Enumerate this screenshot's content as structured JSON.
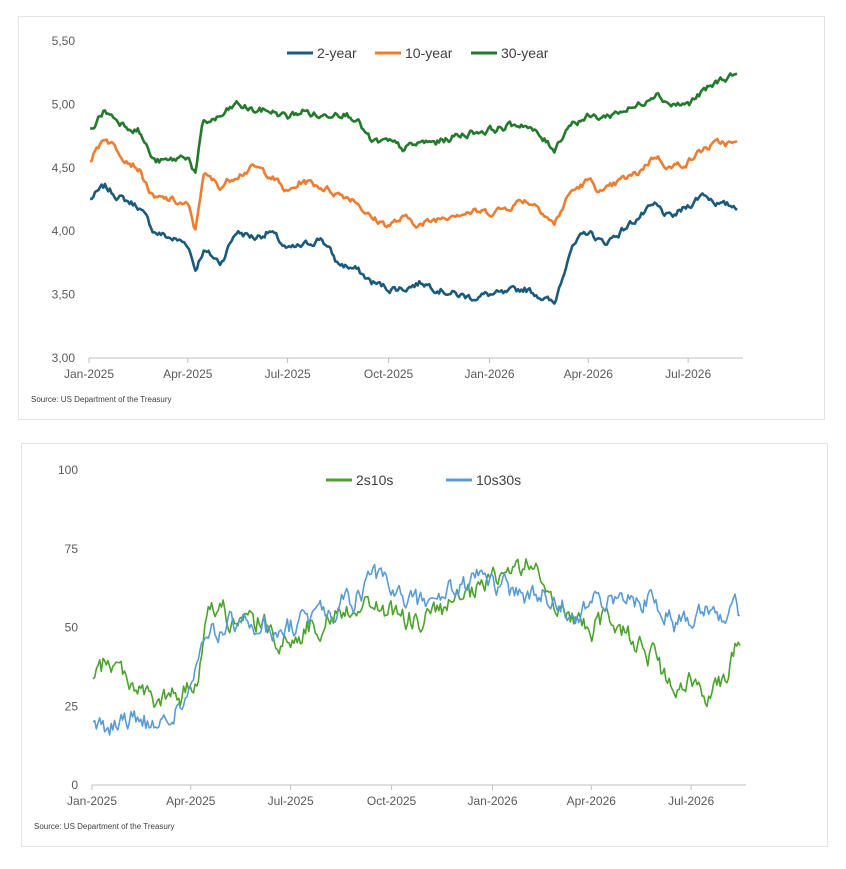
{
  "chart_data": [
    {
      "type": "line",
      "yticks": [
        "3,00",
        "3,50",
        "4,00",
        "4,50",
        "5,00",
        "5,50"
      ],
      "ylim": [
        3.0,
        5.5
      ],
      "xticks": [
        "Jan-2025",
        "Apr-2025",
        "Jul-2025",
        "Oct-2025",
        "Jan-2026",
        "Apr-2026",
        "Jul-2026"
      ],
      "legend_position": "top-center",
      "grid": false,
      "source": "Source: US Department of the Treasury",
      "x": [
        "2025-01-02",
        "2025-01-15",
        "2025-02-01",
        "2025-02-15",
        "2025-03-01",
        "2025-03-15",
        "2025-04-01",
        "2025-04-08",
        "2025-04-15",
        "2025-05-01",
        "2025-05-15",
        "2025-06-01",
        "2025-06-15",
        "2025-07-01",
        "2025-07-15",
        "2025-08-01",
        "2025-08-15",
        "2025-09-01",
        "2025-09-15",
        "2025-10-01",
        "2025-10-15",
        "2025-11-01",
        "2025-11-15",
        "2025-12-01",
        "2025-12-15",
        "2026-01-01",
        "2026-01-15",
        "2026-02-01",
        "2026-02-15",
        "2026-03-01",
        "2026-03-15",
        "2026-04-01",
        "2026-04-15",
        "2026-05-01",
        "2026-05-15",
        "2026-06-01",
        "2026-06-15",
        "2026-07-01",
        "2026-07-15",
        "2026-08-01",
        "2026-08-15"
      ],
      "series": [
        {
          "name": "2-year",
          "color": "#1b5a7a",
          "values": [
            4.25,
            4.35,
            4.25,
            4.2,
            4.0,
            3.95,
            3.9,
            3.7,
            3.85,
            3.75,
            4.0,
            3.95,
            4.0,
            3.85,
            3.88,
            3.95,
            3.75,
            3.7,
            3.6,
            3.55,
            3.55,
            3.6,
            3.55,
            3.5,
            3.48,
            3.5,
            3.5,
            3.55,
            3.5,
            3.42,
            3.85,
            4.0,
            3.9,
            4.0,
            4.1,
            4.2,
            4.1,
            4.2,
            4.3,
            4.2,
            4.2
          ]
        },
        {
          "name": "10-year",
          "color": "#ed7d31",
          "values": [
            4.55,
            4.75,
            4.6,
            4.5,
            4.25,
            4.25,
            4.2,
            4.0,
            4.45,
            4.35,
            4.45,
            4.5,
            4.45,
            4.3,
            4.4,
            4.35,
            4.3,
            4.25,
            4.1,
            4.05,
            4.1,
            4.05,
            4.1,
            4.15,
            4.15,
            4.15,
            4.18,
            4.25,
            4.2,
            4.05,
            4.3,
            4.4,
            4.3,
            4.4,
            4.45,
            4.6,
            4.5,
            4.55,
            4.65,
            4.7,
            4.68
          ]
        },
        {
          "name": "30-year",
          "color": "#237a2c",
          "values": [
            4.8,
            4.95,
            4.85,
            4.8,
            4.55,
            4.55,
            4.6,
            4.45,
            4.85,
            4.9,
            5.0,
            4.95,
            4.95,
            4.9,
            4.95,
            4.9,
            4.95,
            4.9,
            4.7,
            4.7,
            4.65,
            4.7,
            4.7,
            4.75,
            4.78,
            4.8,
            4.82,
            4.85,
            4.75,
            4.65,
            4.85,
            4.9,
            4.9,
            4.95,
            4.98,
            5.1,
            5.0,
            5.0,
            5.1,
            5.2,
            5.25
          ]
        }
      ]
    },
    {
      "type": "line",
      "yticks": [
        "0",
        "25",
        "50",
        "75",
        "100"
      ],
      "ylim": [
        0,
        100
      ],
      "xticks": [
        "Jan-2025",
        "Apr-2025",
        "Jul-2025",
        "Oct-2025",
        "Jan-2026",
        "Apr-2026",
        "Jul-2026"
      ],
      "legend_position": "top-center",
      "grid": false,
      "source": "Source: US Department of the Treasury",
      "x": [
        "2025-01-02",
        "2025-01-15",
        "2025-02-01",
        "2025-02-15",
        "2025-03-01",
        "2025-03-15",
        "2025-04-01",
        "2025-04-08",
        "2025-04-15",
        "2025-05-01",
        "2025-05-15",
        "2025-06-01",
        "2025-06-15",
        "2025-07-01",
        "2025-07-15",
        "2025-08-01",
        "2025-08-15",
        "2025-09-01",
        "2025-09-15",
        "2025-10-01",
        "2025-10-15",
        "2025-11-01",
        "2025-11-15",
        "2025-12-01",
        "2025-12-15",
        "2026-01-01",
        "2026-01-15",
        "2026-02-01",
        "2026-02-15",
        "2026-03-01",
        "2026-03-15",
        "2026-04-01",
        "2026-04-15",
        "2026-05-01",
        "2026-05-15",
        "2026-06-01",
        "2026-06-15",
        "2026-07-01",
        "2026-07-15",
        "2026-08-01",
        "2026-08-15"
      ],
      "series": [
        {
          "name": "2s10s",
          "color": "#4ca32c",
          "values": [
            32,
            40,
            35,
            30,
            25,
            28,
            30,
            35,
            58,
            55,
            50,
            52,
            48,
            45,
            50,
            52,
            55,
            58,
            57,
            55,
            52,
            53,
            55,
            58,
            60,
            65,
            68,
            70,
            65,
            58,
            52,
            50,
            52,
            50,
            45,
            38,
            28,
            32,
            30,
            35,
            48
          ]
        },
        {
          "name": "10s30s",
          "color": "#5b9bd5",
          "values": [
            20,
            18,
            22,
            20,
            18,
            22,
            30,
            40,
            45,
            50,
            52,
            50,
            48,
            50,
            52,
            55,
            57,
            60,
            65,
            62,
            58,
            58,
            60,
            62,
            65,
            65,
            62,
            60,
            60,
            60,
            55,
            57,
            58,
            58,
            60,
            58,
            52,
            55,
            58,
            55,
            55
          ]
        }
      ]
    }
  ]
}
